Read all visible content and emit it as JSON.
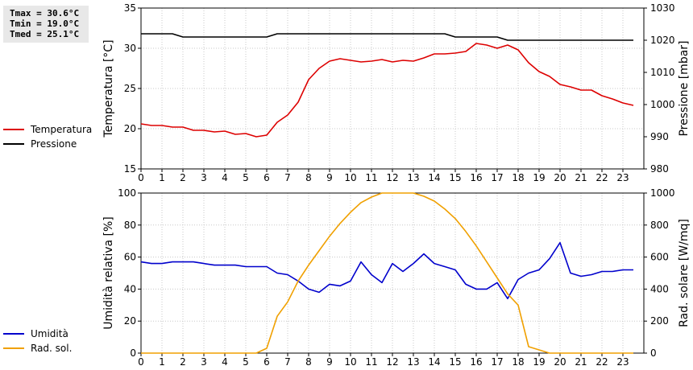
{
  "stats": {
    "tmax": "Tmax = 30.6°C",
    "tmin": "Tmin = 19.0°C",
    "tmed": "Tmed = 25.1°C"
  },
  "legend_top": [
    {
      "label": "Temperatura",
      "color": "#dd0000"
    },
    {
      "label": "Pressione",
      "color": "#000000"
    }
  ],
  "legend_bottom": [
    {
      "label": "Umidità",
      "color": "#0000cc"
    },
    {
      "label": "Rad. sol.",
      "color": "#f0a000"
    }
  ],
  "chart_data": [
    {
      "type": "line",
      "grid": true,
      "x_ticks": [
        0,
        1,
        2,
        3,
        4,
        5,
        6,
        7,
        8,
        9,
        10,
        11,
        12,
        13,
        14,
        15,
        16,
        17,
        18,
        19,
        20,
        21,
        22,
        23
      ],
      "xlim": [
        0,
        24
      ],
      "ylabel": "Temperatura [°C]",
      "ylim": [
        15,
        35
      ],
      "y_ticks": [
        15,
        20,
        25,
        30,
        35
      ],
      "y2label": "Pressione [mbar]",
      "y2lim": [
        980,
        1030
      ],
      "y2_ticks": [
        980,
        990,
        1000,
        1010,
        1020,
        1030
      ],
      "series": [
        {
          "name": "Temperatura",
          "color": "#dd0000",
          "axis": "left",
          "x": [
            0,
            0.5,
            1,
            1.5,
            2,
            2.5,
            3,
            3.5,
            4,
            4.5,
            5,
            5.5,
            6,
            6.5,
            7,
            7.5,
            8,
            8.5,
            9,
            9.5,
            10,
            10.5,
            11,
            11.5,
            12,
            12.5,
            13,
            13.5,
            14,
            14.5,
            15,
            15.5,
            16,
            16.5,
            17,
            17.5,
            18,
            18.5,
            19,
            19.5,
            20,
            20.5,
            21,
            21.5,
            22,
            22.5,
            23,
            23.5
          ],
          "values": [
            20.6,
            20.4,
            20.4,
            20.2,
            20.2,
            19.8,
            19.8,
            19.6,
            19.7,
            19.3,
            19.4,
            19.0,
            19.2,
            20.8,
            21.7,
            23.3,
            26.1,
            27.5,
            28.4,
            28.7,
            28.5,
            28.3,
            28.4,
            28.6,
            28.3,
            28.5,
            28.4,
            28.8,
            29.3,
            29.3,
            29.4,
            29.6,
            30.6,
            30.4,
            30.0,
            30.4,
            29.8,
            28.2,
            27.1,
            26.5,
            25.5,
            25.2,
            24.8,
            24.8,
            24.1,
            23.7,
            23.2,
            22.9
          ]
        },
        {
          "name": "Pressione",
          "color": "#000000",
          "axis": "right",
          "x": [
            0,
            0.5,
            1,
            1.5,
            2,
            2.5,
            3,
            3.5,
            4,
            4.5,
            5,
            5.5,
            6,
            6.5,
            7,
            7.5,
            8,
            8.5,
            9,
            9.5,
            10,
            10.5,
            11,
            11.5,
            12,
            12.5,
            13,
            13.5,
            14,
            14.5,
            15,
            15.5,
            16,
            16.5,
            17,
            17.5,
            18,
            18.5,
            19,
            19.5,
            20,
            20.5,
            21,
            21.5,
            22,
            22.5,
            23,
            23.5
          ],
          "values": [
            1022,
            1022,
            1022,
            1022,
            1021,
            1021,
            1021,
            1021,
            1021,
            1021,
            1021,
            1021,
            1021,
            1022,
            1022,
            1022,
            1022,
            1022,
            1022,
            1022,
            1022,
            1022,
            1022,
            1022,
            1022,
            1022,
            1022,
            1022,
            1022,
            1022,
            1021,
            1021,
            1021,
            1021,
            1021,
            1020,
            1020,
            1020,
            1020,
            1020,
            1020,
            1020,
            1020,
            1020,
            1020,
            1020,
            1020,
            1020
          ]
        }
      ]
    },
    {
      "type": "line",
      "grid": true,
      "x_ticks": [
        0,
        1,
        2,
        3,
        4,
        5,
        6,
        7,
        8,
        9,
        10,
        11,
        12,
        13,
        14,
        15,
        16,
        17,
        18,
        19,
        20,
        21,
        22,
        23
      ],
      "xlim": [
        0,
        24
      ],
      "ylabel": "Umidità relativa [%]",
      "ylim": [
        0,
        100
      ],
      "y_ticks": [
        0,
        20,
        40,
        60,
        80,
        100
      ],
      "y2label": "Rad. solare [W/mq]",
      "y2lim": [
        0,
        1000
      ],
      "y2_ticks": [
        0,
        200,
        400,
        600,
        800,
        1000
      ],
      "series": [
        {
          "name": "Umidità",
          "color": "#0000cc",
          "axis": "left",
          "x": [
            0,
            0.5,
            1,
            1.5,
            2,
            2.5,
            3,
            3.5,
            4,
            4.5,
            5,
            5.5,
            6,
            6.5,
            7,
            7.5,
            8,
            8.5,
            9,
            9.5,
            10,
            10.5,
            11,
            11.5,
            12,
            12.5,
            13,
            13.5,
            14,
            14.5,
            15,
            15.5,
            16,
            16.5,
            17,
            17.5,
            18,
            18.5,
            19,
            19.5,
            20,
            20.5,
            21,
            21.5,
            22,
            22.5,
            23,
            23.5
          ],
          "values": [
            57,
            56,
            56,
            57,
            57,
            57,
            56,
            55,
            55,
            55,
            54,
            54,
            54,
            50,
            49,
            45,
            40,
            38,
            43,
            42,
            45,
            57,
            49,
            44,
            56,
            51,
            56,
            62,
            56,
            54,
            52,
            43,
            40,
            40,
            44,
            34,
            46,
            50,
            52,
            59,
            69,
            50,
            48,
            49,
            51,
            51,
            52,
            52
          ]
        },
        {
          "name": "Rad. sol.",
          "color": "#f0a000",
          "axis": "right",
          "x": [
            0,
            0.5,
            1,
            1.5,
            2,
            2.5,
            3,
            3.5,
            4,
            4.5,
            5,
            5.5,
            6,
            6.5,
            7,
            7.5,
            8,
            8.5,
            9,
            9.5,
            10,
            10.5,
            11,
            11.5,
            12,
            12.5,
            13,
            13.5,
            14,
            14.5,
            15,
            15.5,
            16,
            16.5,
            17,
            17.5,
            18,
            18.5,
            19,
            19.5,
            20,
            20.5,
            21,
            21.5,
            22,
            22.5,
            23,
            23.5
          ],
          "values": [
            0,
            0,
            0,
            0,
            0,
            0,
            0,
            0,
            0,
            0,
            0,
            0,
            30,
            230,
            320,
            450,
            550,
            640,
            730,
            810,
            880,
            940,
            975,
            1000,
            1000,
            1000,
            1000,
            980,
            950,
            900,
            840,
            760,
            670,
            570,
            470,
            370,
            300,
            40,
            20,
            0,
            0,
            0,
            0,
            0,
            0,
            0,
            0,
            0
          ]
        }
      ]
    }
  ]
}
